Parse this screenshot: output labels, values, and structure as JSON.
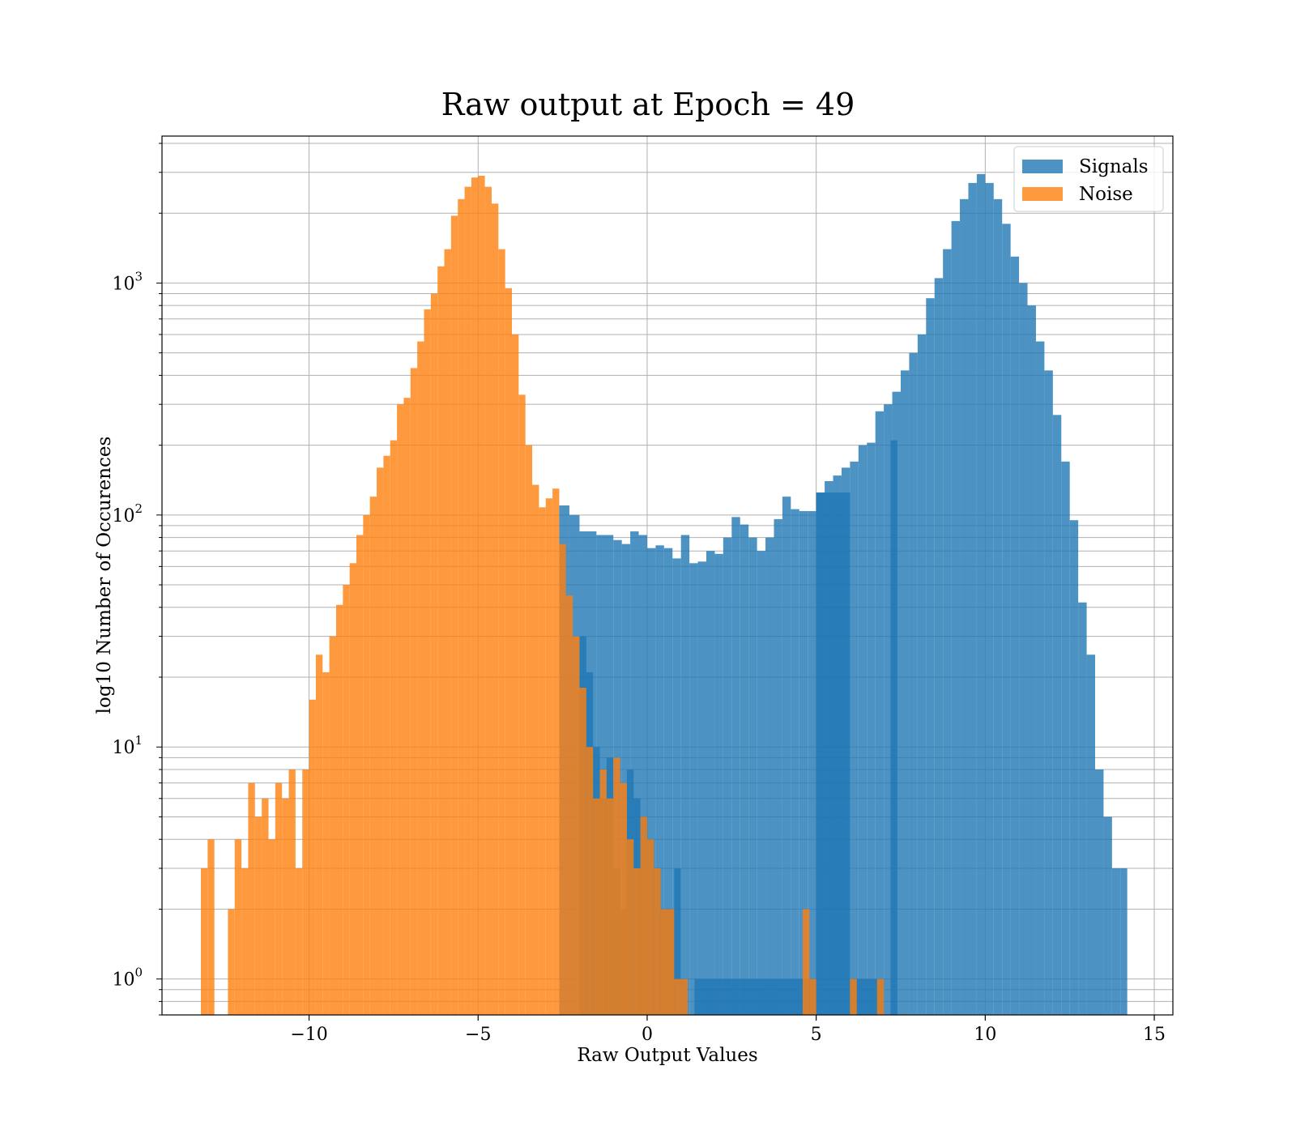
{
  "chart_data": {
    "type": "bar",
    "title": "Raw output at Epoch = 49",
    "xlabel": "Raw Output Values",
    "ylabel": "log10 Number of Occurences",
    "xlim": [
      -14.35,
      15.55
    ],
    "ylim": [
      0.7,
      4300
    ],
    "yscale": "log",
    "grid": true,
    "legend_position": "top-right",
    "xticks": [
      {
        "value": -10,
        "label": "−10"
      },
      {
        "value": -5,
        "label": "−5"
      },
      {
        "value": 0,
        "label": "0"
      },
      {
        "value": 5,
        "label": "5"
      },
      {
        "value": 10,
        "label": "10"
      },
      {
        "value": 15,
        "label": "15"
      }
    ],
    "yticks": [
      {
        "value": 1,
        "base": "10",
        "exp": "0"
      },
      {
        "value": 10,
        "base": "10",
        "exp": "1"
      },
      {
        "value": 100,
        "base": "10",
        "exp": "2"
      },
      {
        "value": 1000,
        "base": "10",
        "exp": "3"
      }
    ],
    "series": [
      {
        "name": "Signals",
        "color": "#1f77b4",
        "opacity": 0.8,
        "bins": [
          [
            1.0,
            1.2,
            1
          ],
          [
            1.4,
            1.6,
            1
          ],
          [
            1.6,
            2.2,
            1
          ],
          [
            2.2,
            2.6,
            1
          ],
          [
            2.6,
            2.8,
            1
          ],
          [
            2.8,
            3.2,
            1
          ],
          [
            3.2,
            4.2,
            1
          ],
          [
            4.2,
            4.6,
            1
          ],
          [
            4.6,
            5.0,
            1
          ],
          [
            5.0,
            6.0,
            125
          ],
          [
            6.0,
            7.0,
            1
          ],
          [
            7.2,
            7.4,
            210
          ],
          [
            -2.6,
            -2.3,
            110
          ],
          [
            -2.3,
            -2.0,
            100
          ],
          [
            -2.0,
            -1.5,
            85
          ],
          [
            -1.5,
            -1.0,
            82
          ],
          [
            -1.0,
            -0.75,
            78
          ],
          [
            -0.75,
            -0.5,
            75
          ],
          [
            -0.5,
            -0.25,
            85
          ],
          [
            -0.25,
            0.0,
            82
          ],
          [
            0.0,
            0.25,
            72
          ],
          [
            0.25,
            0.5,
            74
          ],
          [
            0.5,
            0.75,
            72
          ],
          [
            0.75,
            1.0,
            65
          ],
          [
            1.0,
            1.25,
            82
          ],
          [
            1.25,
            1.5,
            62
          ],
          [
            1.5,
            1.75,
            63
          ],
          [
            1.75,
            2.0,
            70
          ],
          [
            2.0,
            2.25,
            68
          ],
          [
            2.25,
            2.5,
            80
          ],
          [
            2.5,
            2.75,
            98
          ],
          [
            2.75,
            3.0,
            91
          ],
          [
            3.0,
            3.25,
            80
          ],
          [
            3.25,
            3.5,
            70
          ],
          [
            3.5,
            3.75,
            80
          ],
          [
            3.75,
            4.0,
            96
          ],
          [
            4.0,
            4.25,
            120
          ],
          [
            4.25,
            4.5,
            106
          ],
          [
            4.5,
            4.75,
            104
          ],
          [
            4.75,
            5.0,
            104
          ],
          [
            5.0,
            5.25,
            125
          ],
          [
            5.25,
            5.5,
            140
          ],
          [
            5.5,
            5.75,
            148
          ],
          [
            5.75,
            6.0,
            160
          ],
          [
            6.0,
            6.25,
            170
          ],
          [
            6.25,
            6.5,
            200
          ],
          [
            6.5,
            6.75,
            205
          ],
          [
            6.75,
            7.0,
            280
          ],
          [
            7.0,
            7.25,
            300
          ],
          [
            7.25,
            7.5,
            340
          ],
          [
            7.5,
            7.75,
            420
          ],
          [
            7.75,
            8.0,
            500
          ],
          [
            8.0,
            8.25,
            600
          ],
          [
            8.25,
            8.5,
            860
          ],
          [
            8.5,
            8.75,
            1050
          ],
          [
            8.75,
            9.0,
            1400
          ],
          [
            9.0,
            9.25,
            1850
          ],
          [
            9.25,
            9.5,
            2300
          ],
          [
            9.5,
            9.75,
            2700
          ],
          [
            9.75,
            10.0,
            2950
          ],
          [
            10.0,
            10.25,
            2700
          ],
          [
            10.25,
            10.5,
            2300
          ],
          [
            10.5,
            10.75,
            1800
          ],
          [
            10.75,
            11.0,
            1300
          ],
          [
            11.0,
            11.25,
            1000
          ],
          [
            11.25,
            11.5,
            800
          ],
          [
            11.5,
            11.75,
            560
          ],
          [
            11.75,
            12.0,
            420
          ],
          [
            12.0,
            12.25,
            270
          ],
          [
            12.25,
            12.5,
            170
          ],
          [
            12.5,
            12.75,
            95
          ],
          [
            12.75,
            13.0,
            42
          ],
          [
            13.0,
            13.25,
            25
          ],
          [
            13.25,
            13.5,
            8
          ],
          [
            13.5,
            13.75,
            5
          ],
          [
            13.75,
            14.0,
            3
          ],
          [
            14.0,
            14.2,
            3
          ],
          [
            -2.0,
            -1.8,
            30
          ],
          [
            -1.8,
            -1.6,
            21
          ],
          [
            -1.6,
            -1.4,
            10
          ],
          [
            -1.4,
            -1.2,
            6
          ],
          [
            -1.2,
            -1.0,
            9
          ],
          [
            -1.0,
            -0.8,
            3
          ],
          [
            -0.8,
            -0.6,
            2
          ],
          [
            -0.6,
            -0.4,
            8
          ],
          [
            -0.4,
            -0.2,
            6
          ],
          [
            -0.2,
            0.0,
            5
          ],
          [
            0.0,
            0.2,
            4
          ],
          [
            0.2,
            0.4,
            3
          ],
          [
            0.4,
            0.6,
            2
          ],
          [
            0.6,
            0.8,
            2
          ],
          [
            0.8,
            1.0,
            3
          ]
        ]
      },
      {
        "name": "Noise",
        "color": "#ff7f0e",
        "opacity": 0.8,
        "bins": [
          [
            -13.2,
            -13.0,
            3
          ],
          [
            -13.0,
            -12.8,
            4
          ],
          [
            -12.4,
            -12.2,
            2
          ],
          [
            -12.2,
            -12.0,
            4
          ],
          [
            -12.0,
            -11.8,
            3
          ],
          [
            -11.8,
            -11.6,
            7
          ],
          [
            -11.6,
            -11.4,
            5
          ],
          [
            -11.4,
            -11.2,
            6
          ],
          [
            -11.2,
            -11.0,
            4
          ],
          [
            -11.0,
            -10.8,
            7
          ],
          [
            -10.8,
            -10.6,
            6
          ],
          [
            -10.6,
            -10.4,
            8
          ],
          [
            -10.4,
            -10.2,
            3
          ],
          [
            -10.2,
            -10.0,
            8
          ],
          [
            -10.0,
            -9.8,
            16
          ],
          [
            -9.8,
            -9.6,
            25
          ],
          [
            -9.6,
            -9.4,
            21
          ],
          [
            -9.4,
            -9.2,
            30
          ],
          [
            -9.2,
            -9.0,
            41
          ],
          [
            -9.0,
            -8.8,
            50
          ],
          [
            -8.8,
            -8.6,
            62
          ],
          [
            -8.6,
            -8.4,
            82
          ],
          [
            -8.4,
            -8.2,
            100
          ],
          [
            -8.2,
            -8.0,
            120
          ],
          [
            -8.0,
            -7.8,
            160
          ],
          [
            -7.8,
            -7.6,
            180
          ],
          [
            -7.6,
            -7.4,
            210
          ],
          [
            -7.4,
            -7.2,
            300
          ],
          [
            -7.2,
            -7.0,
            320
          ],
          [
            -7.0,
            -6.8,
            430
          ],
          [
            -6.8,
            -6.6,
            560
          ],
          [
            -6.6,
            -6.4,
            770
          ],
          [
            -6.4,
            -6.2,
            900
          ],
          [
            -6.2,
            -6.0,
            1180
          ],
          [
            -6.0,
            -5.8,
            1400
          ],
          [
            -5.8,
            -5.6,
            1950
          ],
          [
            -5.6,
            -5.4,
            2300
          ],
          [
            -5.4,
            -5.2,
            2600
          ],
          [
            -5.2,
            -5.0,
            2850
          ],
          [
            -5.0,
            -4.8,
            2900
          ],
          [
            -4.8,
            -4.6,
            2600
          ],
          [
            -4.6,
            -4.4,
            2200
          ],
          [
            -4.4,
            -4.2,
            1400
          ],
          [
            -4.2,
            -4.0,
            950
          ],
          [
            -4.0,
            -3.8,
            600
          ],
          [
            -3.8,
            -3.6,
            330
          ],
          [
            -3.6,
            -3.4,
            200
          ],
          [
            -3.4,
            -3.2,
            135
          ],
          [
            -3.2,
            -3.0,
            108
          ],
          [
            -3.0,
            -2.8,
            118
          ],
          [
            -2.8,
            -2.6,
            130
          ],
          [
            -2.6,
            -2.4,
            75
          ],
          [
            -2.4,
            -2.2,
            45
          ],
          [
            -2.2,
            -2.0,
            30
          ],
          [
            -2.0,
            -1.8,
            18
          ],
          [
            -1.8,
            -1.6,
            10
          ],
          [
            -1.6,
            -1.4,
            6
          ],
          [
            -1.4,
            -1.2,
            8
          ],
          [
            -1.2,
            -1.0,
            6
          ],
          [
            -1.0,
            -0.8,
            9
          ],
          [
            -0.8,
            -0.6,
            7
          ],
          [
            -0.6,
            -0.4,
            4
          ],
          [
            -0.4,
            -0.2,
            3
          ],
          [
            -0.2,
            0.0,
            5
          ],
          [
            0.0,
            0.2,
            4
          ],
          [
            0.2,
            0.4,
            3
          ],
          [
            0.4,
            0.6,
            2
          ],
          [
            0.6,
            0.8,
            2
          ],
          [
            0.8,
            1.0,
            1
          ],
          [
            1.0,
            1.2,
            1
          ],
          [
            4.6,
            4.8,
            2
          ],
          [
            4.8,
            5.0,
            1
          ],
          [
            6.0,
            6.2,
            1
          ],
          [
            6.8,
            7.0,
            1
          ]
        ]
      }
    ]
  }
}
